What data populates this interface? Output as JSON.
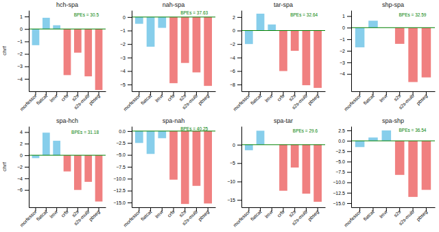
{
  "chart_data": [
    {
      "type": "bar",
      "title": "hch-spa",
      "ylabel": "chrf",
      "annotations": [
        "BPEs = 30.5"
      ],
      "categories": [
        "morfessor",
        "flatcat",
        "lmvr",
        "crfs",
        "s2s",
        "s2s-multi",
        "pbseg"
      ],
      "values": [
        -1.3,
        0.9,
        0.3,
        -3.7,
        -1.9,
        -3.8,
        -4.9
      ],
      "colors": [
        "#87CEEB",
        "#87CEEB",
        "#87CEEB",
        "#F08080",
        "#F08080",
        "#F08080",
        "#F08080"
      ],
      "ylim": [
        -5,
        1.5
      ],
      "yticks": [
        -4,
        -3,
        -2,
        -1,
        0,
        1
      ],
      "grid": false
    },
    {
      "type": "bar",
      "title": "nah-spa",
      "annotations": [
        "BPEs = 37.63"
      ],
      "categories": [
        "morfessor",
        "flatcat",
        "lmvr",
        "crfs",
        "s2s",
        "s2s-multi",
        "pbseg"
      ],
      "values": [
        -0.5,
        -2.2,
        -0.8,
        -4.9,
        -3.4,
        -4.1,
        -5.1
      ],
      "colors": [
        "#87CEEB",
        "#87CEEB",
        "#87CEEB",
        "#F08080",
        "#F08080",
        "#F08080",
        "#F08080"
      ],
      "ylim": [
        -5.5,
        0.5
      ],
      "yticks": [
        -5,
        -4,
        -3,
        -2,
        -1,
        0
      ],
      "grid": false
    },
    {
      "type": "bar",
      "title": "tar-spa",
      "annotations": [
        "BPEs = 32.64"
      ],
      "categories": [
        "morfessor",
        "flatcat",
        "lmvr",
        "crfs",
        "s2s",
        "s2s-multi",
        "pbseg"
      ],
      "values": [
        -2.0,
        2.5,
        0.9,
        -6.0,
        -3.0,
        -8.1,
        -8.5
      ],
      "colors": [
        "#87CEEB",
        "#87CEEB",
        "#87CEEB",
        "#F08080",
        "#F08080",
        "#F08080",
        "#F08080"
      ],
      "ylim": [
        -9,
        3
      ],
      "yticks": [
        -8,
        -6,
        -4,
        -2,
        0,
        2
      ],
      "grid": false
    },
    {
      "type": "bar",
      "title": "shp-spa",
      "annotations": [
        "BPEs = 32.59"
      ],
      "categories": [
        "morfessor",
        "flatcat",
        "lmvr",
        "s2s",
        "s2s-multi",
        "pbseg"
      ],
      "values": [
        -1.7,
        0.6,
        0.0,
        -1.4,
        -4.7,
        -4.3
      ],
      "colors": [
        "#87CEEB",
        "#87CEEB",
        "#87CEEB",
        "#F08080",
        "#F08080",
        "#F08080"
      ],
      "ylim": [
        -5.5,
        1.5
      ],
      "yticks": [
        -4,
        -3,
        -2,
        -1,
        0,
        1
      ],
      "grid": false
    },
    {
      "type": "bar",
      "title": "spa-hch",
      "ylabel": "chrf",
      "annotations": [
        "BPEs = 31.18"
      ],
      "categories": [
        "morfessor",
        "flatcat",
        "lmvr",
        "crfs",
        "s2s",
        "s2s-multi",
        "pbseg"
      ],
      "values": [
        -0.5,
        3.9,
        2.5,
        -2.8,
        -6.0,
        -4.6,
        -8.0
      ],
      "colors": [
        "#87CEEB",
        "#87CEEB",
        "#87CEEB",
        "#F08080",
        "#F08080",
        "#F08080",
        "#F08080"
      ],
      "ylim": [
        -9,
        5
      ],
      "yticks": [
        -6,
        -4,
        -2,
        0,
        2,
        4
      ],
      "grid": false
    },
    {
      "type": "bar",
      "title": "spa-nah",
      "annotations": [
        "BPEs = 40.25"
      ],
      "categories": [
        "morfessor",
        "flatcat",
        "lmvr",
        "crfs",
        "s2s",
        "s2s-multi",
        "pbseg"
      ],
      "values": [
        -2.5,
        -4.8,
        -1.5,
        -10.2,
        -15.3,
        -11.5,
        -15.2
      ],
      "colors": [
        "#87CEEB",
        "#87CEEB",
        "#87CEEB",
        "#F08080",
        "#F08080",
        "#F08080",
        "#F08080"
      ],
      "ylim": [
        -16,
        1
      ],
      "yticks": [
        {
          "value": -15,
          "label": "−15.0"
        },
        {
          "value": -12.5,
          "label": "−12.5"
        },
        {
          "value": -10,
          "label": "−10.0"
        },
        {
          "value": -7.5,
          "label": "−7.5"
        },
        {
          "value": -5,
          "label": "−5.0"
        },
        {
          "value": -2.5,
          "label": "−2.5"
        },
        {
          "value": 0,
          "label": "0.0"
        }
      ],
      "grid": false
    },
    {
      "type": "bar",
      "title": "spa-tar",
      "annotations": [
        "BPEs = 29.6"
      ],
      "categories": [
        "morfessor",
        "flatcat",
        "lmvr",
        "crfs",
        "s2s",
        "s2s-multi",
        "pbseg"
      ],
      "values": [
        -1.5,
        3.8,
        0.0,
        -12.5,
        -6.2,
        -13.3,
        -15.5
      ],
      "colors": [
        "#87CEEB",
        "#87CEEB",
        "#87CEEB",
        "#F08080",
        "#F08080",
        "#F08080",
        "#F08080"
      ],
      "ylim": [
        -17,
        5
      ],
      "yticks": [
        -15,
        -10,
        -5,
        0
      ],
      "grid": false
    },
    {
      "type": "bar",
      "title": "spa-shp",
      "annotations": [
        "BPEs = 36.54"
      ],
      "categories": [
        "morfessor",
        "flatcat",
        "lmvr",
        "s2s",
        "s2s-multi",
        "pbseg"
      ],
      "values": [
        -1.5,
        0.8,
        2.5,
        -8.2,
        -13.5,
        -11.8
      ],
      "colors": [
        "#87CEEB",
        "#87CEEB",
        "#87CEEB",
        "#F08080",
        "#F08080",
        "#F08080"
      ],
      "ylim": [
        -16,
        3.5
      ],
      "yticks": [
        {
          "value": -15,
          "label": "−15.0"
        },
        {
          "value": -12.5,
          "label": "−12.5"
        },
        {
          "value": -10,
          "label": "−10.0"
        },
        {
          "value": -7.5,
          "label": "−7.5"
        },
        {
          "value": -5,
          "label": "−5.0"
        },
        {
          "value": -2.5,
          "label": "−2.5"
        },
        {
          "value": 0,
          "label": "0.0"
        },
        {
          "value": 2.5,
          "label": "2.5"
        }
      ],
      "grid": false
    }
  ]
}
